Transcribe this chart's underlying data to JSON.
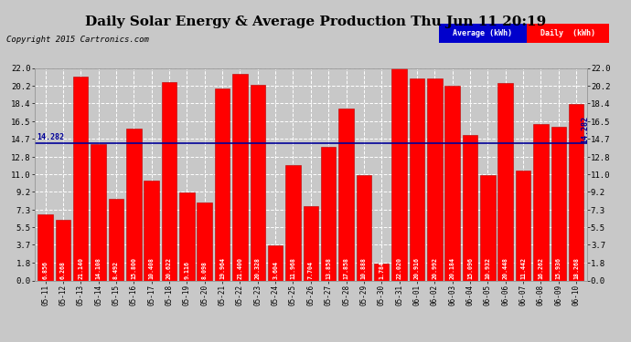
{
  "title": "Daily Solar Energy & Average Production Thu Jun 11 20:19",
  "copyright": "Copyright 2015 Cartronics.com",
  "average_value": 14.282,
  "average_label": "14.282",
  "categories": [
    "05-11",
    "05-12",
    "05-13",
    "05-14",
    "05-15",
    "05-16",
    "05-17",
    "05-18",
    "05-19",
    "05-20",
    "05-21",
    "05-22",
    "05-23",
    "05-24",
    "05-25",
    "05-26",
    "05-27",
    "05-28",
    "05-29",
    "05-30",
    "05-31",
    "06-01",
    "06-02",
    "06-03",
    "06-04",
    "06-05",
    "06-06",
    "06-07",
    "06-08",
    "06-09",
    "06-10"
  ],
  "values": [
    6.856,
    6.268,
    21.14,
    14.108,
    8.492,
    15.8,
    10.408,
    20.622,
    9.116,
    8.098,
    19.964,
    21.4,
    20.328,
    3.604,
    11.968,
    7.704,
    13.858,
    17.858,
    10.888,
    1.784,
    22.02,
    20.916,
    20.992,
    20.184,
    15.096,
    10.932,
    20.448,
    11.442,
    16.262,
    15.936,
    18.268
  ],
  "bar_color": "#ff0000",
  "bar_edge_color": "#bb0000",
  "avg_line_color": "#000099",
  "background_color": "#c8c8c8",
  "plot_bg_color": "#c8c8c8",
  "grid_color": "#ffffff",
  "title_color": "#000000",
  "yticks": [
    0.0,
    1.8,
    3.7,
    5.5,
    7.3,
    9.2,
    11.0,
    12.8,
    14.7,
    16.5,
    18.4,
    20.2,
    22.0
  ],
  "ylim": [
    0.0,
    22.0
  ],
  "legend_avg_color": "#0000cc",
  "legend_daily_color": "#ff0000",
  "legend_avg_text": "Average (kWh)",
  "legend_daily_text": "Daily  (kWh)",
  "title_fontsize": 11,
  "copyright_fontsize": 6.5,
  "bar_value_fontsize": 4.8
}
